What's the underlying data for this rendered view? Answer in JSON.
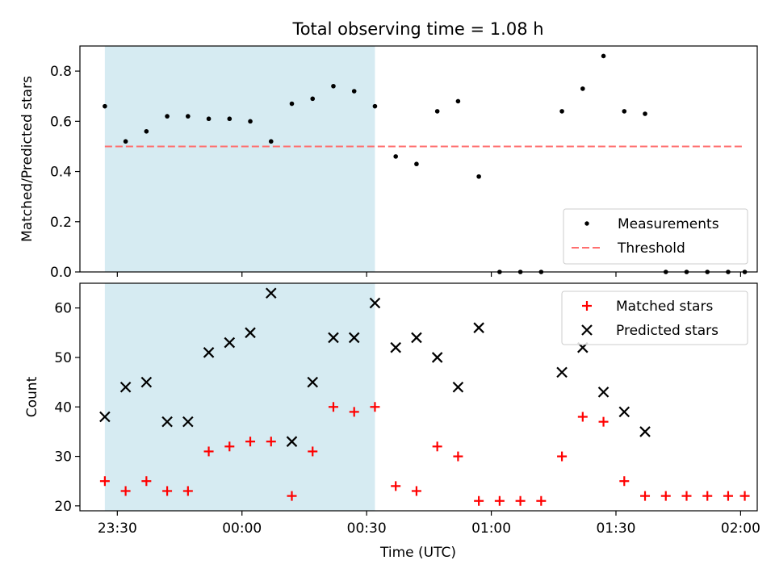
{
  "chart_data": [
    {
      "type": "scatter",
      "title": "Total observing time = 1.08 h",
      "xlabel": "",
      "ylabel": "Matched/Predicted stars",
      "ylim": [
        0,
        0.9
      ],
      "yticks": [
        0.0,
        0.2,
        0.4,
        0.6,
        0.8
      ],
      "ytick_labels": [
        "0.0",
        "0.2",
        "0.4",
        "0.6",
        "0.8"
      ],
      "xlim": [
        "23:21",
        "02:04"
      ],
      "grid": false,
      "legend_position": "lower-right",
      "shaded_span": [
        "23:27",
        "00:32"
      ],
      "shade_color": "#add8e6",
      "series": [
        {
          "name": "Measurements",
          "marker": "dot",
          "color": "#000000",
          "x": [
            "23:27",
            "23:32",
            "23:37",
            "23:42",
            "23:47",
            "23:52",
            "23:57",
            "00:02",
            "00:07",
            "00:12",
            "00:17",
            "00:22",
            "00:27",
            "00:32",
            "00:37",
            "00:42",
            "00:47",
            "00:52",
            "00:57",
            "01:02",
            "01:07",
            "01:12",
            "01:17",
            "01:22",
            "01:27",
            "01:32",
            "01:37",
            "01:42",
            "01:47",
            "01:52",
            "01:57",
            "02:01"
          ],
          "y": [
            0.66,
            0.52,
            0.56,
            0.62,
            0.62,
            0.61,
            0.61,
            0.6,
            0.52,
            0.67,
            0.69,
            0.74,
            0.72,
            0.66,
            0.46,
            0.43,
            0.64,
            0.68,
            0.38,
            0.0,
            0.0,
            0.0,
            0.64,
            0.73,
            0.86,
            0.64,
            0.63,
            0.0,
            0.0,
            0.0,
            0.0,
            0.0
          ]
        }
      ],
      "threshold": {
        "name": "Threshold",
        "value": 0.5,
        "x_start": "23:27",
        "x_end": "02:01",
        "color": "#ff6f6f",
        "style": "dashed"
      }
    },
    {
      "type": "scatter",
      "title": "",
      "xlabel": "Time (UTC)",
      "ylabel": "Count",
      "ylim": [
        19,
        65
      ],
      "yticks": [
        20,
        30,
        40,
        50,
        60
      ],
      "ytick_labels": [
        "20",
        "30",
        "40",
        "50",
        "60"
      ],
      "xticks": [
        "23:30",
        "00:00",
        "00:30",
        "01:00",
        "01:30",
        "02:00"
      ],
      "xlim": [
        "23:21",
        "02:04"
      ],
      "grid": false,
      "legend_position": "upper-right",
      "shaded_span": [
        "23:27",
        "00:32"
      ],
      "shade_color": "#add8e6",
      "series": [
        {
          "name": "Matched stars",
          "marker": "plus",
          "color": "#ff0000",
          "x": [
            "23:27",
            "23:32",
            "23:37",
            "23:42",
            "23:47",
            "23:52",
            "23:57",
            "00:02",
            "00:07",
            "00:12",
            "00:17",
            "00:22",
            "00:27",
            "00:32",
            "00:37",
            "00:42",
            "00:47",
            "00:52",
            "00:57",
            "01:02",
            "01:07",
            "01:12",
            "01:17",
            "01:22",
            "01:27",
            "01:32",
            "01:37",
            "01:42",
            "01:47",
            "01:52",
            "01:57",
            "02:01"
          ],
          "y": [
            25,
            23,
            25,
            23,
            23,
            31,
            32,
            33,
            33,
            22,
            31,
            40,
            39,
            40,
            24,
            23,
            32,
            30,
            21,
            21,
            21,
            21,
            30,
            38,
            37,
            25,
            22,
            22,
            22,
            22,
            22,
            22
          ]
        },
        {
          "name": "Predicted stars",
          "marker": "x",
          "color": "#000000",
          "x": [
            "23:27",
            "23:32",
            "23:37",
            "23:42",
            "23:47",
            "23:52",
            "23:57",
            "00:02",
            "00:07",
            "00:12",
            "00:17",
            "00:22",
            "00:27",
            "00:32",
            "00:37",
            "00:42",
            "00:47",
            "00:52",
            "00:57",
            "01:17",
            "01:22",
            "01:27",
            "01:32",
            "01:37"
          ],
          "y": [
            38,
            44,
            45,
            37,
            37,
            51,
            53,
            55,
            63,
            33,
            45,
            54,
            54,
            61,
            52,
            54,
            50,
            44,
            56,
            47,
            52,
            43,
            39,
            35
          ]
        }
      ]
    }
  ]
}
